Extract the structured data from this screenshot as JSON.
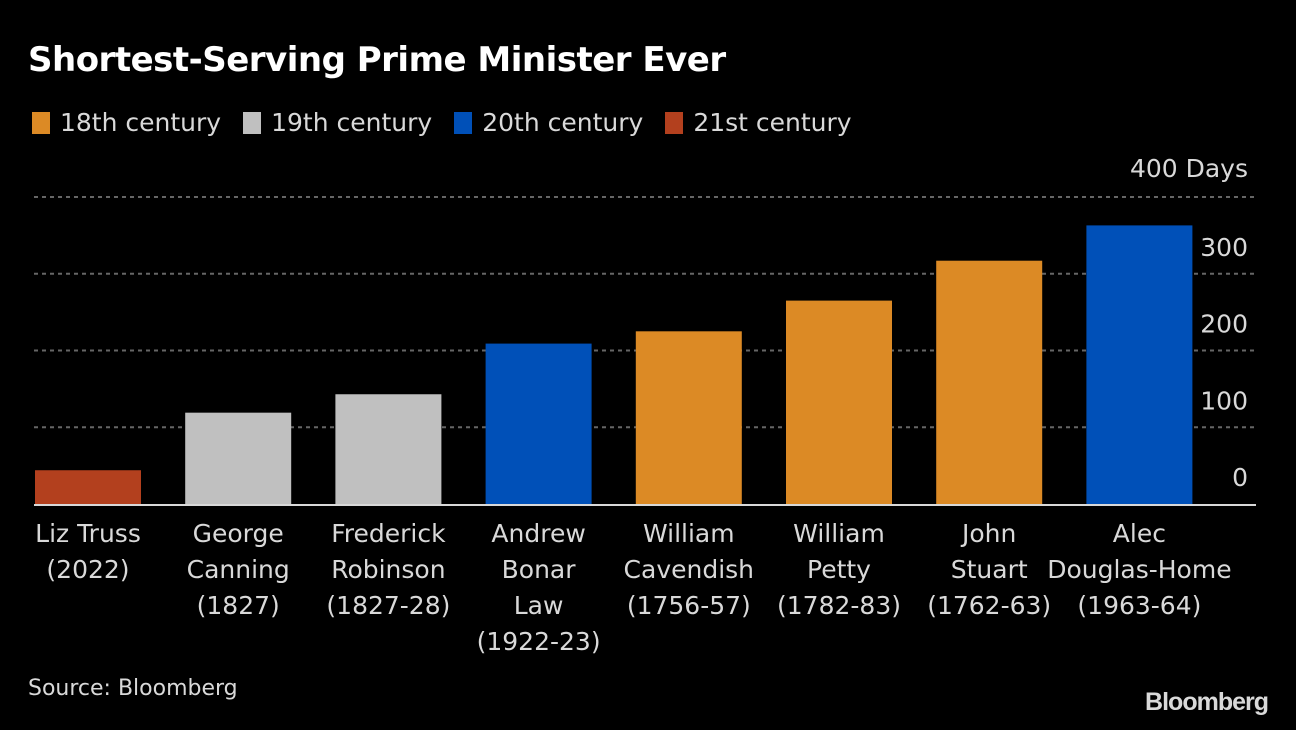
{
  "chart_data": {
    "type": "bar",
    "title": "Shortest-Serving Prime Minister Ever",
    "xlabel": "",
    "ylabel": "Days",
    "ylim": [
      0,
      400
    ],
    "yticks": [
      0,
      100,
      200,
      300,
      400
    ],
    "ytick_labels": [
      "0",
      "100",
      "200",
      "300",
      "400 Days"
    ],
    "grid": true,
    "legend_position": "top-left",
    "legend": [
      {
        "label": "18th century",
        "color": "#dc8a25"
      },
      {
        "label": "19th century",
        "color": "#c0c0c0"
      },
      {
        "label": "20th century",
        "color": "#0050b8"
      },
      {
        "label": "21st century",
        "color": "#b3401e"
      }
    ],
    "categories": [
      [
        "Liz Truss",
        "(2022)"
      ],
      [
        "George",
        "Canning",
        "(1827)"
      ],
      [
        "Frederick",
        "Robinson",
        "(1827-28)"
      ],
      [
        "Andrew",
        "Bonar",
        "Law",
        "(1922-23)"
      ],
      [
        "William",
        "Cavendish",
        "(1756-57)"
      ],
      [
        "William",
        "Petty",
        "(1782-83)"
      ],
      [
        "John",
        "Stuart",
        "(1762-63)"
      ],
      [
        "Alec",
        "Douglas-Home",
        "(1963-64)"
      ]
    ],
    "values": [
      44,
      119,
      143,
      209,
      225,
      265,
      317,
      363
    ],
    "century": [
      "21st century",
      "19th century",
      "19th century",
      "20th century",
      "18th century",
      "18th century",
      "18th century",
      "20th century"
    ],
    "source": "Source: Bloomberg"
  },
  "brand": "Bloomberg"
}
